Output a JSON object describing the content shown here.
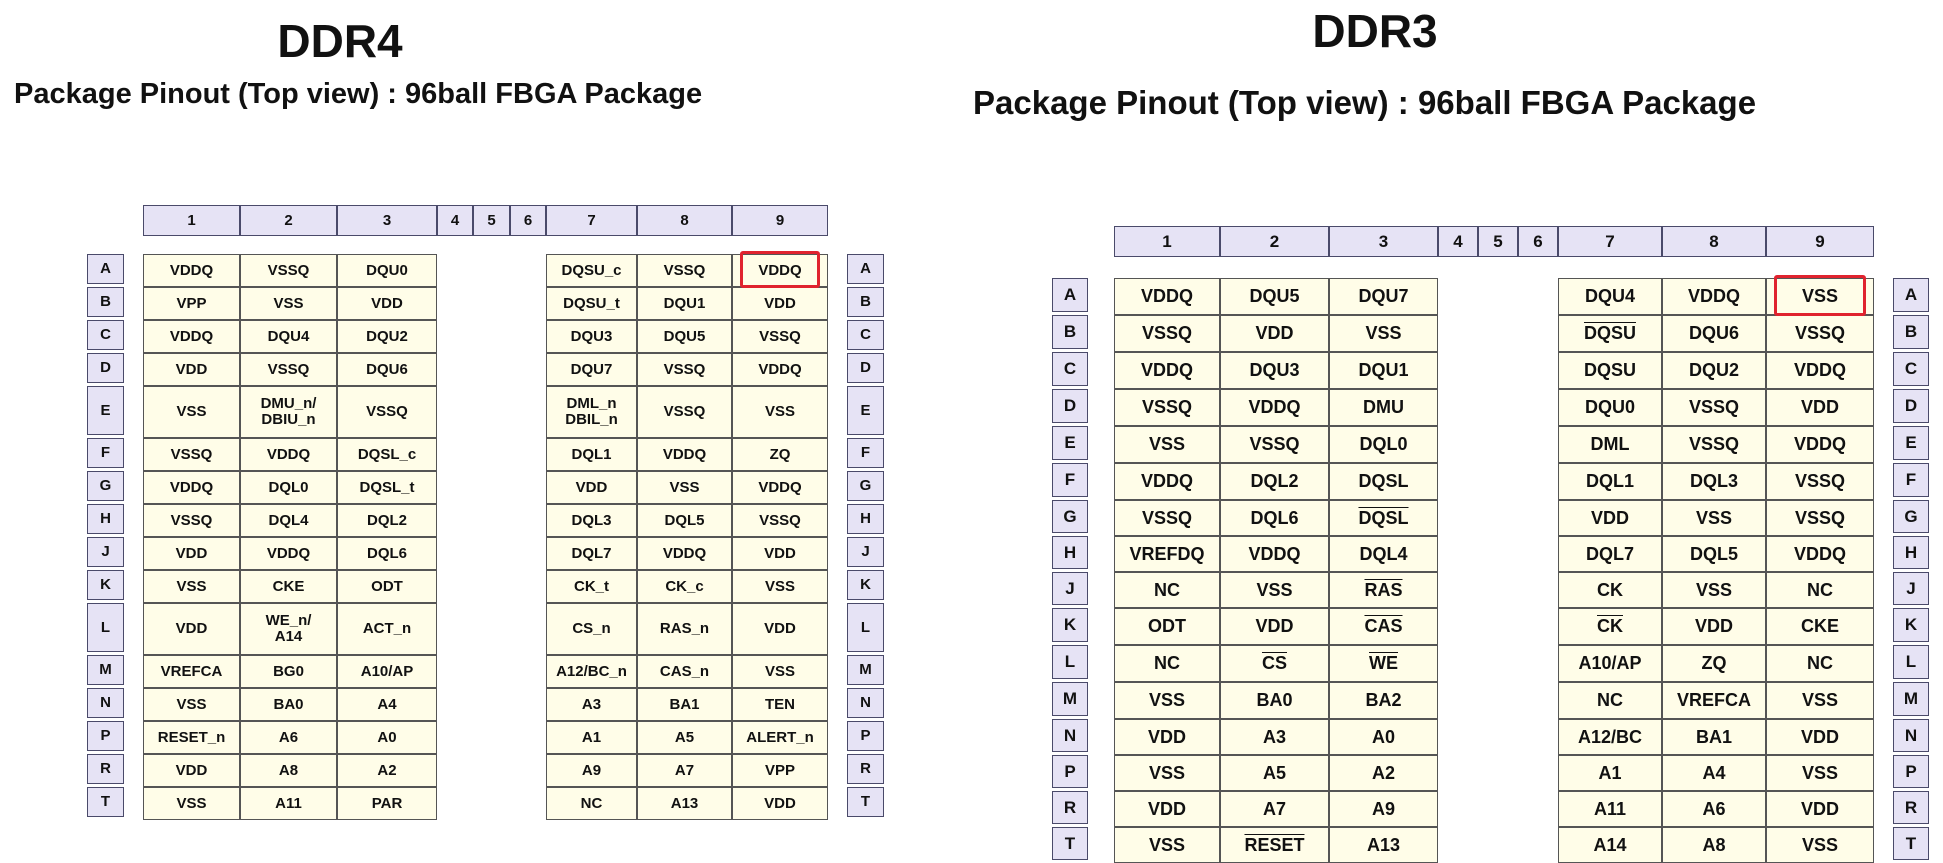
{
  "ddr4": {
    "title": "DDR4",
    "subtitle": "Package Pinout (Top view) : 96ball FBGA Package",
    "columns": [
      "1",
      "2",
      "3",
      "4",
      "5",
      "6",
      "7",
      "8",
      "9"
    ],
    "rows": [
      "A",
      "B",
      "C",
      "D",
      "E",
      "F",
      "G",
      "H",
      "J",
      "K",
      "L",
      "M",
      "N",
      "P",
      "R",
      "T"
    ],
    "left_pins": [
      [
        "VDDQ",
        "VSSQ",
        "DQU0"
      ],
      [
        "VPP",
        "VSS",
        "VDD"
      ],
      [
        "VDDQ",
        "DQU4",
        "DQU2"
      ],
      [
        "VDD",
        "VSSQ",
        "DQU6"
      ],
      [
        "VSS",
        "DMU_n/\nDBIU_n",
        "VSSQ"
      ],
      [
        "VSSQ",
        "VDDQ",
        "DQSL_c"
      ],
      [
        "VDDQ",
        "DQL0",
        "DQSL_t"
      ],
      [
        "VSSQ",
        "DQL4",
        "DQL2"
      ],
      [
        "VDD",
        "VDDQ",
        "DQL6"
      ],
      [
        "VSS",
        "CKE",
        "ODT"
      ],
      [
        "VDD",
        "WE_n/\nA14",
        "ACT_n"
      ],
      [
        "VREFCA",
        "BG0",
        "A10/AP"
      ],
      [
        "VSS",
        "BA0",
        "A4"
      ],
      [
        "RESET_n",
        "A6",
        "A0"
      ],
      [
        "VDD",
        "A8",
        "A2"
      ],
      [
        "VSS",
        "A11",
        "PAR"
      ]
    ],
    "right_pins": [
      [
        "DQSU_c",
        "VSSQ",
        "VDDQ"
      ],
      [
        "DQSU_t",
        "DQU1",
        "VDD"
      ],
      [
        "DQU3",
        "DQU5",
        "VSSQ"
      ],
      [
        "DQU7",
        "VSSQ",
        "VDDQ"
      ],
      [
        "DML_n\nDBIL_n",
        "VSSQ",
        "VSS"
      ],
      [
        "DQL1",
        "VDDQ",
        "ZQ"
      ],
      [
        "VDD",
        "VSS",
        "VDDQ"
      ],
      [
        "DQL3",
        "DQL5",
        "VSSQ"
      ],
      [
        "DQL7",
        "VDDQ",
        "VDD"
      ],
      [
        "CK_t",
        "CK_c",
        "VSS"
      ],
      [
        "CS_n",
        "RAS_n",
        "VDD"
      ],
      [
        "A12/BC_n",
        "CAS_n",
        "VSS"
      ],
      [
        "A3",
        "BA1",
        "TEN"
      ],
      [
        "A1",
        "A5",
        "ALERT_n"
      ],
      [
        "A9",
        "A7",
        "VPP"
      ],
      [
        "NC",
        "A13",
        "VDD"
      ]
    ],
    "highlight": {
      "row": 0,
      "col": "9",
      "value": "VDDQ"
    }
  },
  "ddr3": {
    "title": "DDR3",
    "subtitle": "Package Pinout (Top view) : 96ball FBGA Package",
    "columns": [
      "1",
      "2",
      "3",
      "4",
      "5",
      "6",
      "7",
      "8",
      "9"
    ],
    "rows": [
      "A",
      "B",
      "C",
      "D",
      "E",
      "F",
      "G",
      "H",
      "J",
      "K",
      "L",
      "M",
      "N",
      "P",
      "R",
      "T"
    ],
    "left_pins": [
      [
        "VDDQ",
        "DQU5",
        "DQU7"
      ],
      [
        "VSSQ",
        "VDD",
        "VSS"
      ],
      [
        "VDDQ",
        "DQU3",
        "DQU1"
      ],
      [
        "VSSQ",
        "VDDQ",
        "DMU"
      ],
      [
        "VSS",
        "VSSQ",
        "DQL0"
      ],
      [
        "VDDQ",
        "DQL2",
        "DQSL"
      ],
      [
        "VSSQ",
        "DQL6",
        "DQSL"
      ],
      [
        "VREFDQ",
        "VDDQ",
        "DQL4"
      ],
      [
        "NC",
        "VSS",
        "RAS"
      ],
      [
        "ODT",
        "VDD",
        "CAS"
      ],
      [
        "NC",
        "CS",
        "WE"
      ],
      [
        "VSS",
        "BA0",
        "BA2"
      ],
      [
        "VDD",
        "A3",
        "A0"
      ],
      [
        "VSS",
        "A5",
        "A2"
      ],
      [
        "VDD",
        "A7",
        "A9"
      ],
      [
        "VSS",
        "RESET",
        "A13"
      ]
    ],
    "right_pins": [
      [
        "DQU4",
        "VDDQ",
        "VSS"
      ],
      [
        "DQSU",
        "DQU6",
        "VSSQ"
      ],
      [
        "DQSU",
        "DQU2",
        "VDDQ"
      ],
      [
        "DQU0",
        "VSSQ",
        "VDD"
      ],
      [
        "DML",
        "VSSQ",
        "VDDQ"
      ],
      [
        "DQL1",
        "DQL3",
        "VSSQ"
      ],
      [
        "VDD",
        "VSS",
        "VSSQ"
      ],
      [
        "DQL7",
        "DQL5",
        "VDDQ"
      ],
      [
        "CK",
        "VSS",
        "NC"
      ],
      [
        "CK",
        "VDD",
        "CKE"
      ],
      [
        "A10/AP",
        "ZQ",
        "NC"
      ],
      [
        "NC",
        "VREFCA",
        "VSS"
      ],
      [
        "A12/BC",
        "BA1",
        "VDD"
      ],
      [
        "A1",
        "A4",
        "VSS"
      ],
      [
        "A11",
        "A6",
        "VDD"
      ],
      [
        "A14",
        "A8",
        "VSS"
      ]
    ],
    "overlined": [
      "1-1-0",
      "0-6-2",
      "0-8-2",
      "0-9-2",
      "0-10-1",
      "0-10-2",
      "0-15-1",
      "1-9-0"
    ],
    "highlight": {
      "row": 0,
      "col": "9",
      "value": "VSS"
    },
    "colors": {
      "header_bg": "#e6e3f5",
      "pin_bg": "#fffde8",
      "highlight": "#e0232e"
    }
  }
}
